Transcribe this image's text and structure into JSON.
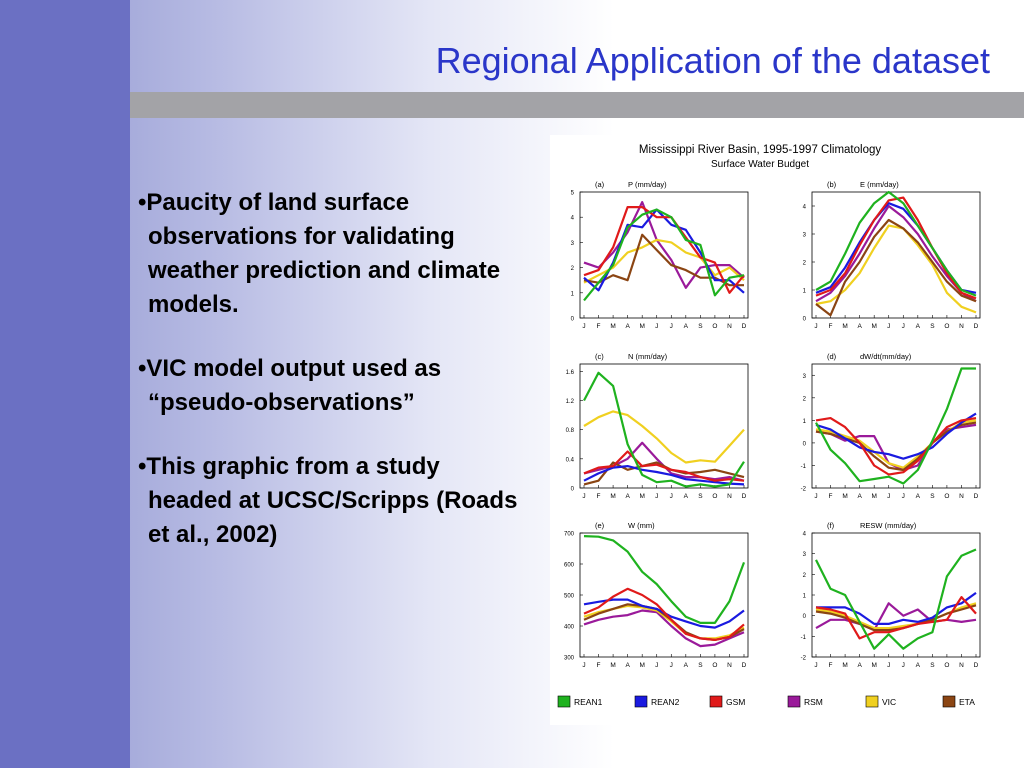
{
  "slide": {
    "title": "Regional Application of the dataset",
    "bullets": [
      "•Paucity of land surface observations for validating weather prediction and climate models.",
      "•VIC model output used as “pseudo-observations”",
      "•This graphic from a study headed at UCSC/Scripps (Roads et al., 2002)"
    ]
  },
  "figure": {
    "title": "Mississippi River Basin, 1995-1997 Climatology",
    "subtitle": "Surface Water Budget"
  },
  "chart_data": [
    {
      "type": "line",
      "panel_label": "(a)",
      "title": "P (mm/day)",
      "categories": [
        "J",
        "F",
        "M",
        "A",
        "M",
        "J",
        "J",
        "A",
        "S",
        "O",
        "N",
        "D"
      ],
      "ylim": [
        0,
        5
      ],
      "yticks": [
        0,
        1,
        2,
        3,
        4,
        5
      ],
      "series": [
        {
          "name": "REAN1",
          "values": [
            0.7,
            1.4,
            2.1,
            3.6,
            4.1,
            4.3,
            4.0,
            3.1,
            2.9,
            0.9,
            1.6,
            1.7
          ]
        },
        {
          "name": "REAN2",
          "values": [
            1.6,
            1.1,
            2.2,
            3.7,
            3.6,
            4.3,
            3.7,
            3.5,
            2.6,
            1.5,
            1.5,
            1.0
          ]
        },
        {
          "name": "GSM",
          "values": [
            1.7,
            1.9,
            2.8,
            4.4,
            4.4,
            4.0,
            4.0,
            3.2,
            2.4,
            2.2,
            1.0,
            1.7
          ]
        },
        {
          "name": "RSM",
          "values": [
            2.2,
            2.0,
            2.6,
            3.4,
            4.6,
            3.1,
            2.3,
            1.2,
            2.0,
            2.1,
            2.1,
            1.6
          ]
        },
        {
          "name": "VIC",
          "values": [
            1.4,
            1.7,
            2.0,
            2.6,
            2.8,
            3.1,
            3.0,
            2.6,
            2.4,
            1.7,
            2.0,
            1.5
          ]
        },
        {
          "name": "ETA",
          "values": [
            1.5,
            1.4,
            1.7,
            1.5,
            3.3,
            2.7,
            2.1,
            1.9,
            1.6,
            1.6,
            1.3,
            1.3
          ]
        }
      ]
    },
    {
      "type": "line",
      "panel_label": "(b)",
      "title": "E (mm/day)",
      "categories": [
        "J",
        "F",
        "M",
        "A",
        "M",
        "J",
        "J",
        "A",
        "S",
        "O",
        "N",
        "D"
      ],
      "ylim": [
        0,
        4.5
      ],
      "yticks": [
        0,
        1,
        2,
        3,
        4
      ],
      "series": [
        {
          "name": "REAN1",
          "values": [
            1.0,
            1.3,
            2.3,
            3.4,
            4.1,
            4.5,
            4.1,
            3.3,
            2.5,
            1.7,
            1.0,
            0.8
          ]
        },
        {
          "name": "REAN2",
          "values": [
            0.9,
            1.1,
            1.8,
            2.7,
            3.5,
            4.1,
            3.9,
            3.3,
            2.5,
            1.7,
            1.0,
            0.9
          ]
        },
        {
          "name": "GSM",
          "values": [
            0.8,
            1.0,
            1.6,
            2.6,
            3.5,
            4.2,
            4.3,
            3.5,
            2.5,
            1.6,
            0.9,
            0.7
          ]
        },
        {
          "name": "RSM",
          "values": [
            0.6,
            0.9,
            1.5,
            2.3,
            3.2,
            4.0,
            3.6,
            3.0,
            2.2,
            1.5,
            0.9,
            0.6
          ]
        },
        {
          "name": "VIC",
          "values": [
            0.5,
            0.6,
            1.0,
            1.6,
            2.5,
            3.3,
            3.2,
            2.6,
            1.9,
            0.9,
            0.4,
            0.2
          ]
        },
        {
          "name": "ETA",
          "values": [
            0.5,
            0.1,
            1.3,
            2.0,
            2.9,
            3.5,
            3.2,
            2.7,
            2.0,
            1.3,
            0.8,
            0.6
          ]
        }
      ]
    },
    {
      "type": "line",
      "panel_label": "(c)",
      "title": "N (mm/day)",
      "categories": [
        "J",
        "F",
        "M",
        "A",
        "M",
        "J",
        "J",
        "A",
        "S",
        "O",
        "N",
        "D"
      ],
      "ylim": [
        0,
        1.7
      ],
      "yticks": [
        0.0,
        0.4,
        0.8,
        1.2,
        1.6
      ],
      "series": [
        {
          "name": "REAN1",
          "values": [
            1.2,
            1.58,
            1.4,
            0.6,
            0.18,
            0.08,
            0.1,
            0.02,
            0.05,
            0.02,
            0.05,
            0.36
          ]
        },
        {
          "name": "REAN2",
          "values": [
            0.1,
            0.2,
            0.28,
            0.3,
            0.25,
            0.22,
            0.18,
            0.12,
            0.1,
            0.08,
            0.06,
            0.05
          ]
        },
        {
          "name": "GSM",
          "values": [
            0.2,
            0.28,
            0.3,
            0.5,
            0.3,
            0.32,
            0.25,
            0.22,
            0.15,
            0.1,
            0.12,
            0.1
          ]
        },
        {
          "name": "RSM",
          "values": [
            0.2,
            0.25,
            0.3,
            0.4,
            0.62,
            0.4,
            0.2,
            0.15,
            0.15,
            0.12,
            0.15,
            0.1
          ]
        },
        {
          "name": "VIC",
          "values": [
            0.85,
            0.97,
            1.05,
            1.0,
            0.85,
            0.68,
            0.48,
            0.35,
            0.38,
            0.36,
            0.58,
            0.8
          ]
        },
        {
          "name": "ETA",
          "values": [
            0.05,
            0.1,
            0.35,
            0.25,
            0.3,
            0.35,
            0.25,
            0.2,
            0.22,
            0.25,
            0.2,
            0.15
          ]
        }
      ]
    },
    {
      "type": "line",
      "panel_label": "(d)",
      "title": "dW/dt(mm/day)",
      "categories": [
        "J",
        "F",
        "M",
        "A",
        "M",
        "J",
        "J",
        "A",
        "S",
        "O",
        "N",
        "D"
      ],
      "ylim": [
        -2,
        3.5
      ],
      "yticks": [
        -2,
        -1,
        0,
        1,
        2,
        3
      ],
      "series": [
        {
          "name": "REAN1",
          "values": [
            0.9,
            -0.3,
            -0.9,
            -1.7,
            -1.6,
            -1.5,
            -1.8,
            -1.2,
            0.1,
            1.5,
            3.3,
            3.3
          ]
        },
        {
          "name": "REAN2",
          "values": [
            0.8,
            0.6,
            0.2,
            -0.2,
            -0.4,
            -0.5,
            -0.7,
            -0.5,
            -0.2,
            0.4,
            0.9,
            1.3
          ]
        },
        {
          "name": "GSM",
          "values": [
            1.0,
            1.1,
            0.7,
            0.0,
            -1.0,
            -1.4,
            -1.3,
            -0.8,
            0.0,
            0.7,
            1.0,
            1.1
          ]
        },
        {
          "name": "RSM",
          "values": [
            0.5,
            0.4,
            0.1,
            0.3,
            0.3,
            -0.9,
            -1.2,
            -1.0,
            0.0,
            0.6,
            0.7,
            0.8
          ]
        },
        {
          "name": "VIC",
          "values": [
            0.6,
            0.5,
            0.3,
            0.1,
            -0.4,
            -0.9,
            -1.1,
            -0.6,
            0.0,
            0.5,
            0.9,
            1.0
          ]
        },
        {
          "name": "ETA",
          "values": [
            0.5,
            0.4,
            0.2,
            0.0,
            -0.6,
            -1.1,
            -1.2,
            -0.7,
            0.0,
            0.5,
            0.8,
            0.9
          ]
        }
      ]
    },
    {
      "type": "line",
      "panel_label": "(e)",
      "title": "W (mm)",
      "categories": [
        "J",
        "F",
        "M",
        "A",
        "M",
        "J",
        "J",
        "A",
        "S",
        "O",
        "N",
        "D"
      ],
      "ylim": [
        300,
        700
      ],
      "yticks": [
        300,
        400,
        500,
        600,
        700
      ],
      "series": [
        {
          "name": "REAN1",
          "values": [
            690,
            688,
            676,
            640,
            575,
            535,
            480,
            430,
            410,
            410,
            480,
            605
          ]
        },
        {
          "name": "REAN2",
          "values": [
            470,
            478,
            485,
            485,
            465,
            455,
            430,
            415,
            400,
            395,
            415,
            450
          ]
        },
        {
          "name": "GSM",
          "values": [
            440,
            460,
            495,
            520,
            500,
            470,
            420,
            375,
            360,
            355,
            365,
            405
          ]
        },
        {
          "name": "RSM",
          "values": [
            405,
            420,
            430,
            435,
            450,
            445,
            400,
            360,
            335,
            340,
            360,
            380
          ]
        },
        {
          "name": "VIC",
          "values": [
            430,
            445,
            455,
            465,
            460,
            450,
            415,
            375,
            360,
            360,
            370,
            395
          ]
        },
        {
          "name": "ETA",
          "values": [
            420,
            440,
            455,
            470,
            465,
            455,
            420,
            380,
            360,
            355,
            365,
            390
          ]
        }
      ]
    },
    {
      "type": "line",
      "panel_label": "(f)",
      "title": "RESW (mm/day)",
      "categories": [
        "J",
        "F",
        "M",
        "A",
        "M",
        "J",
        "J",
        "A",
        "S",
        "O",
        "N",
        "D"
      ],
      "ylim": [
        -2,
        4
      ],
      "yticks": [
        -2,
        -1,
        0,
        1,
        2,
        3,
        4
      ],
      "series": [
        {
          "name": "REAN1",
          "values": [
            2.7,
            1.3,
            1.0,
            -0.3,
            -1.6,
            -0.9,
            -1.6,
            -1.1,
            -0.8,
            1.9,
            2.9,
            3.2
          ]
        },
        {
          "name": "REAN2",
          "values": [
            0.4,
            0.4,
            0.4,
            0.1,
            -0.4,
            -0.4,
            -0.2,
            -0.3,
            -0.1,
            0.4,
            0.6,
            1.1
          ]
        },
        {
          "name": "GSM",
          "values": [
            0.4,
            0.3,
            0.1,
            -1.1,
            -0.8,
            -0.8,
            -0.6,
            -0.4,
            -0.3,
            -0.2,
            0.9,
            0.1
          ]
        },
        {
          "name": "RSM",
          "values": [
            -0.6,
            -0.2,
            -0.2,
            -0.4,
            -0.7,
            0.6,
            0.0,
            0.3,
            -0.3,
            -0.2,
            -0.3,
            -0.2
          ]
        },
        {
          "name": "VIC",
          "values": [
            0.3,
            0.2,
            0.0,
            -0.3,
            -0.6,
            -0.6,
            -0.5,
            -0.4,
            -0.2,
            0.1,
            0.4,
            0.6
          ]
        },
        {
          "name": "ETA",
          "values": [
            0.2,
            0.1,
            -0.1,
            -0.4,
            -0.7,
            -0.7,
            -0.6,
            -0.4,
            -0.2,
            0.1,
            0.3,
            0.5
          ]
        }
      ]
    }
  ],
  "legend": [
    {
      "name": "REAN1",
      "color": "#1fb21f"
    },
    {
      "name": "REAN2",
      "color": "#1a1ae0"
    },
    {
      "name": "GSM",
      "color": "#e01a1a"
    },
    {
      "name": "RSM",
      "color": "#9a1a9a"
    },
    {
      "name": "VIC",
      "color": "#f0d020"
    },
    {
      "name": "ETA",
      "color": "#8b4513"
    }
  ]
}
